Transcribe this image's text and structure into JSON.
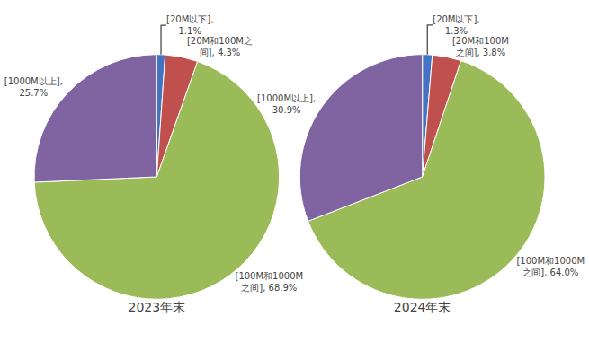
{
  "chart_data": [
    {
      "type": "pie",
      "title": "2023年末",
      "categories": [
        "[20M以下]",
        "[20M和100M之\n间]",
        "[100M和1000M\n之间]",
        "[1000M以上]"
      ],
      "values": [
        1.1,
        4.3,
        68.9,
        25.7
      ],
      "value_labels": [
        "[20M以下],\n1.1%",
        "[20M和100M之\n间], 4.3%",
        "[100M和1000M\n之间], 68.9%",
        "[1000M以上],\n25.7%"
      ],
      "data_labels": true,
      "colors": [
        "#4472c4",
        "#c0504d",
        "#9bbb59",
        "#8064a2"
      ]
    },
    {
      "type": "pie",
      "title": "2024年末",
      "categories": [
        "[20M以下]",
        "[20M和100M之\n间]",
        "[100M和1000M\n之间]",
        "[1000M以上]"
      ],
      "values": [
        1.3,
        3.8,
        64.0,
        30.9
      ],
      "value_labels": [
        "[20M以下],\n1.3%",
        "[20M和100M\n之间], 3.8%",
        "[100M和1000M\n之间], 64.0%",
        "[1000M以上],\n30.9%"
      ],
      "data_labels": true,
      "colors": [
        "#4472c4",
        "#c0504d",
        "#9bbb59",
        "#8064a2"
      ]
    }
  ]
}
